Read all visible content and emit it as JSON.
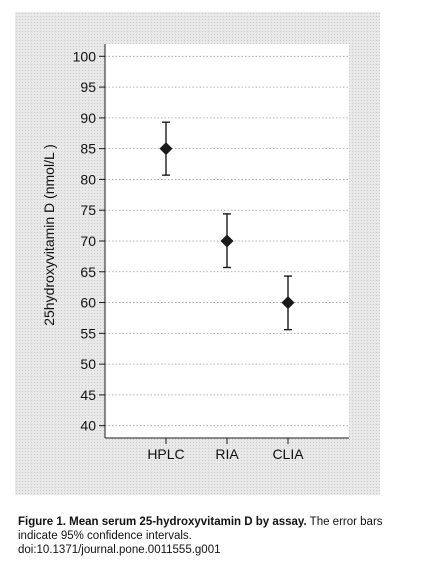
{
  "chart_data": {
    "type": "scatter",
    "categories": [
      "HPLC",
      "RIA",
      "CLIA"
    ],
    "values": [
      85,
      70,
      60
    ],
    "ci_lower": [
      80.7,
      65.7,
      55.6
    ],
    "ci_upper": [
      89.3,
      74.4,
      64.3
    ],
    "ylabel": "25hydroxyvitamin D (nmol/L )",
    "xlabel": "",
    "ylim": [
      38,
      102
    ],
    "yticks": [
      40,
      45,
      50,
      55,
      60,
      65,
      70,
      75,
      80,
      85,
      90,
      95,
      100
    ],
    "marker": "diamond",
    "error_bars": true,
    "grid": "horizontal dotted",
    "colors": {
      "marker": "#1a1a1a",
      "grid": "#9a9a9a",
      "panel": "#e9e9e9",
      "plot_area": "#ffffff"
    }
  },
  "caption": {
    "label": "Figure 1. Mean serum 25-hydroxyvitamin D by assay.",
    "text": " The error bars indicate 95% confidence intervals.",
    "doi": "doi:10.1371/journal.pone.0011555.g001"
  }
}
